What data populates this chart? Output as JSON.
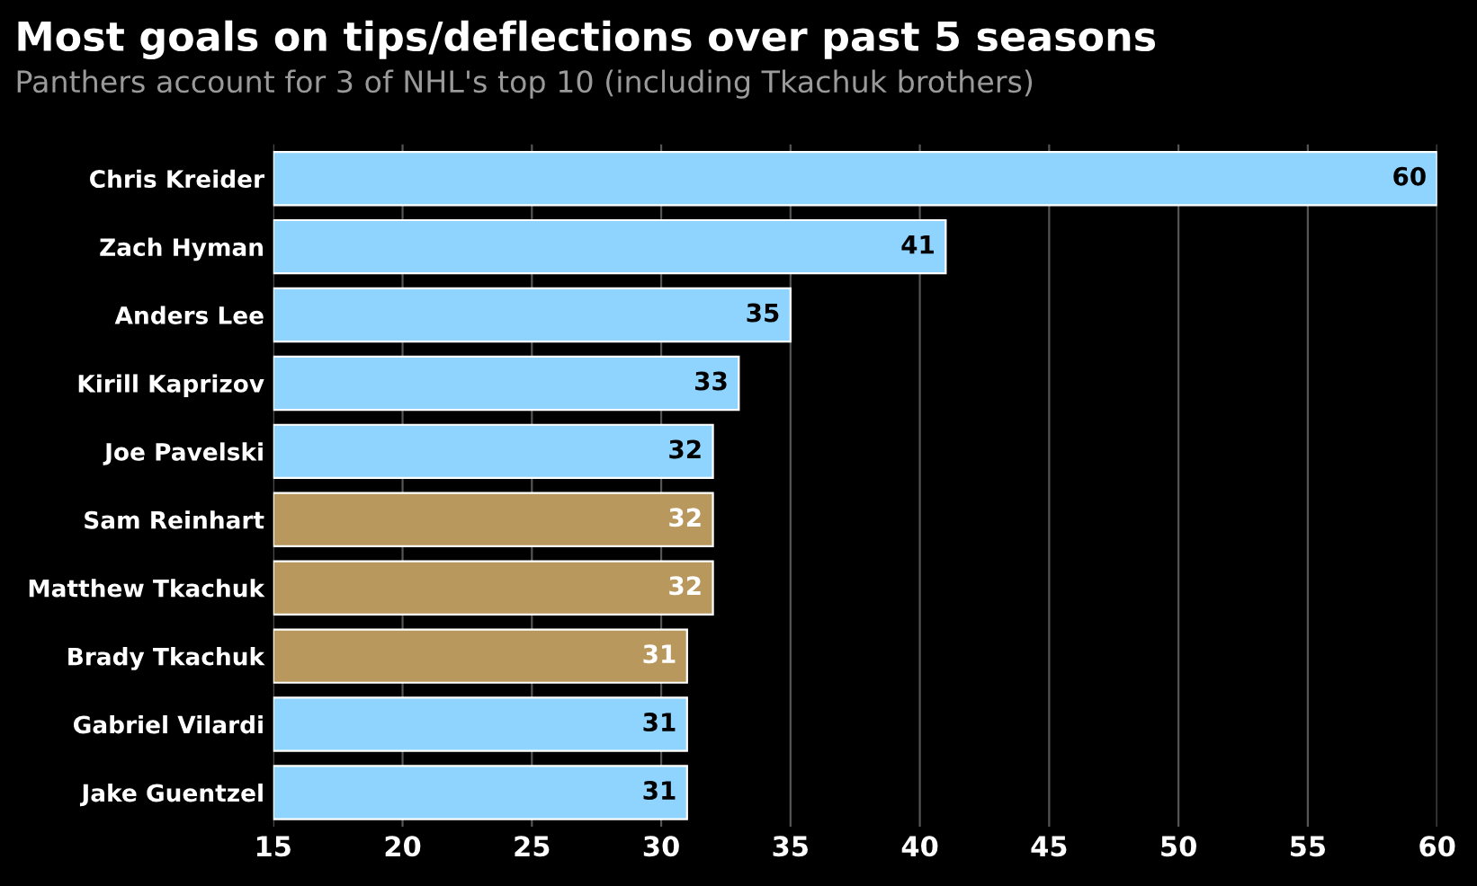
{
  "chart_data": {
    "type": "bar",
    "orientation": "horizontal",
    "title": "Most goals on tips/deflections over past 5 seasons",
    "subtitle": "Panthers account for 3 of NHL's top 10 (including Tkachuk brothers)",
    "categories": [
      "Chris Kreider",
      "Zach Hyman",
      "Anders Lee",
      "Kirill Kaprizov",
      "Joe Pavelski",
      "Sam Reinhart",
      "Matthew Tkachuk",
      "Brady Tkachuk",
      "Gabriel Vilardi",
      "Jake Guentzel"
    ],
    "values": [
      60,
      41,
      35,
      33,
      32,
      32,
      32,
      31,
      31,
      31
    ],
    "colors": [
      "#8fd4ff",
      "#8fd4ff",
      "#8fd4ff",
      "#8fd4ff",
      "#8fd4ff",
      "#b8985c",
      "#b8985c",
      "#b8985c",
      "#8fd4ff",
      "#8fd4ff"
    ],
    "xlim": [
      15,
      60
    ],
    "xticks": [
      15,
      20,
      25,
      30,
      35,
      40,
      45,
      50,
      55,
      60
    ],
    "grid": "x",
    "data_labels": true
  }
}
